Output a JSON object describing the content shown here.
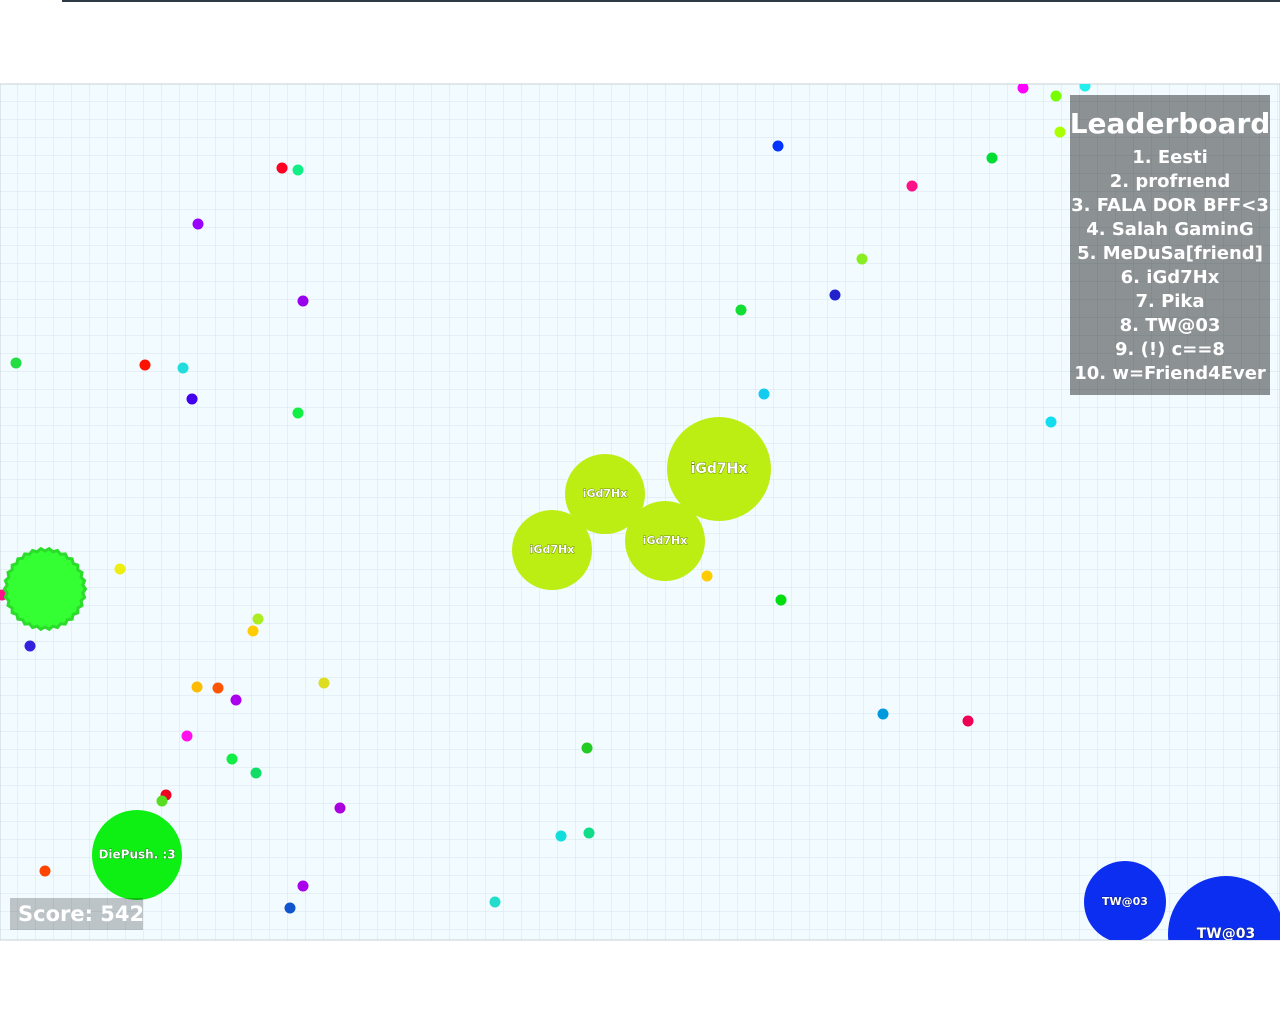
{
  "leaderboard": {
    "title": "Leaderboard",
    "entries": [
      "1. Eesti",
      "2. profrıend",
      "3. FALA DOR BFF<3",
      "4. Salah GaminG",
      "5. MeDuSa[friend]",
      "6. iGd7Hx",
      "7. Pika",
      "8. TW@03",
      "9. (!) c==8",
      "10. w=Friend4Ever"
    ]
  },
  "score": "Score: 542",
  "cells": [
    "iGd7Hx",
    "iGd7Hx",
    "iGd7Hx",
    "iGd7Hx",
    "DiePush. :3",
    "TW@03",
    "TW@03"
  ]
}
